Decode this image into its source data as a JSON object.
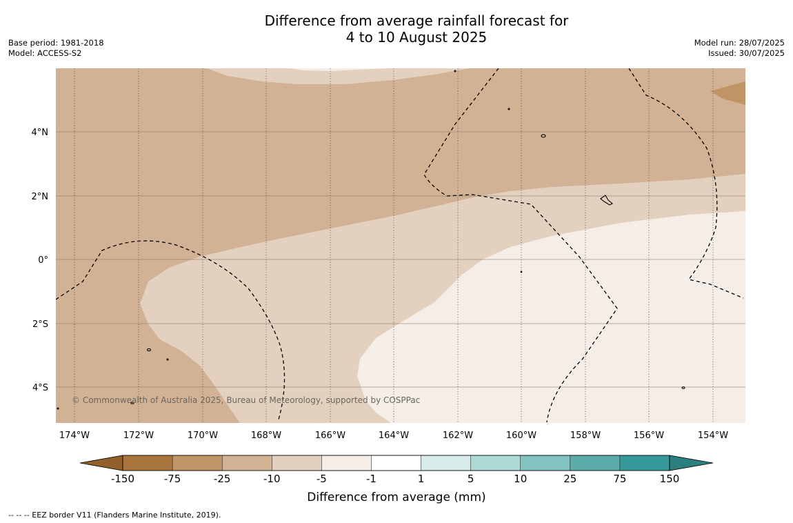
{
  "title": {
    "line1": "Difference from average rainfall forecast for",
    "line2": "4 to 10 August 2025"
  },
  "meta_left": {
    "base_period": "Base period: 1981-2018",
    "model": "Model: ACCESS-S2"
  },
  "meta_right": {
    "model_run": "Model run: 28/07/2025",
    "issued": "Issued: 30/07/2025"
  },
  "map": {
    "lon_range": [
      -174.6,
      -153.0
    ],
    "lat_range": [
      -5.2,
      5.9
    ],
    "lon_ticks": [
      "174°W",
      "172°W",
      "170°W",
      "168°W",
      "166°W",
      "164°W",
      "162°W",
      "160°W",
      "158°W",
      "156°W",
      "154°W"
    ],
    "lat_ticks": [
      "4°N",
      "2°N",
      "0°",
      "2°S",
      "4°S"
    ],
    "copyright": "© Commonwealth of Australia 2025, Bureau of Meteorology, supported by COSPPac",
    "field_colors": {
      "minus_25_to_minus_10": "#d2b294",
      "minus_10_to_minus_5": "#e3d0bf",
      "minus_5_to_minus_1": "#f5ede7",
      "minus_75_to_minus_25": "#c19465"
    }
  },
  "colorbar": {
    "labels": [
      "-150",
      "-75",
      "-25",
      "-10",
      "-5",
      "-1",
      "1",
      "5",
      "10",
      "25",
      "75",
      "150"
    ],
    "colors": [
      "#a9753d",
      "#c19465",
      "#d2b294",
      "#e3d0bf",
      "#f5ede7",
      "#ffffff",
      "#d7ecea",
      "#acd8d6",
      "#82c2c0",
      "#5aabaa",
      "#35999a"
    ],
    "extend_low_color": "#935f2b",
    "extend_high_color": "#2c7f7f",
    "title": "Difference from average (mm)"
  },
  "footnote": "--  --  -- EEZ border V11 (Flanders Marine Institute, 2019)."
}
